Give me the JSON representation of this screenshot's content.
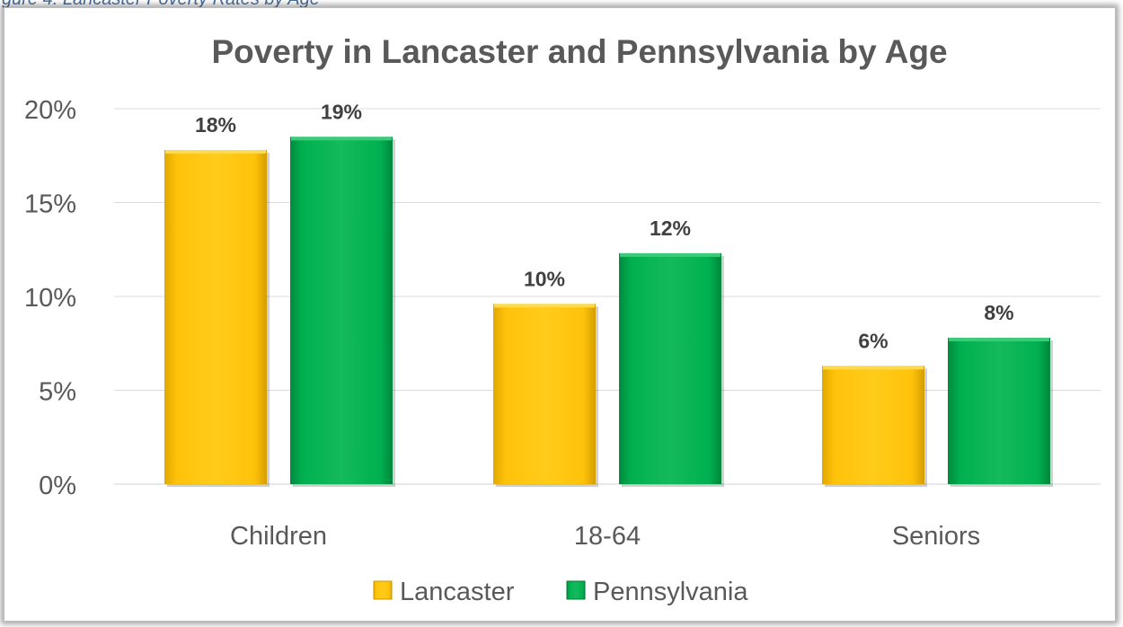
{
  "caption": "gure 4: Lancaster Poverty Rates by Age",
  "chart_data": {
    "type": "bar",
    "title": "Poverty in Lancaster and Pennsylvania by Age",
    "categories": [
      "Children",
      "18-64",
      "Seniors"
    ],
    "series": [
      {
        "name": "Lancaster",
        "values": [
          17.8,
          9.6,
          6.3
        ],
        "labels": [
          "18%",
          "10%",
          "6%"
        ],
        "color": "#FFC000"
      },
      {
        "name": "Pennsylvania",
        "values": [
          18.5,
          12.3,
          7.8
        ],
        "labels": [
          "19%",
          "12%",
          "8%"
        ],
        "color": "#00B050"
      }
    ],
    "yticks": [
      "0%",
      "5%",
      "10%",
      "15%",
      "20%"
    ],
    "ylim": [
      0,
      20
    ],
    "xlabel": "",
    "ylabel": "",
    "grid": true,
    "legend_position": "bottom"
  }
}
